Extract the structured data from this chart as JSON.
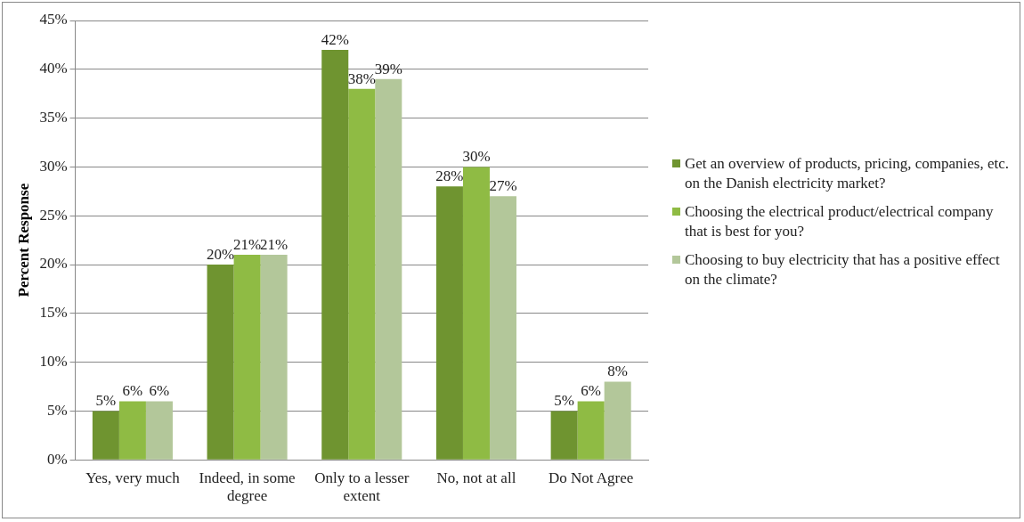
{
  "chart_data": {
    "type": "bar",
    "ylabel": "Percent Response",
    "categories": [
      "Yes, very much",
      "Indeed, in some degree",
      "Only to a lesser extent",
      "No, not at all",
      "Do Not Agree"
    ],
    "series": [
      {
        "name": "Get an overview of products, pricing, companies, etc. on the Danish electricity market?",
        "color": "#6f9430",
        "values": [
          5,
          20,
          42,
          28,
          5
        ],
        "value_labels": [
          "5%",
          "20%",
          "42%",
          "28%",
          "5%"
        ]
      },
      {
        "name": "Choosing the electrical product/electrical company that is best for you?",
        "color": "#8fbb44",
        "values": [
          6,
          21,
          38,
          30,
          6
        ],
        "value_labels": [
          "6%",
          "21%",
          "38%",
          "30%",
          "6%"
        ]
      },
      {
        "name": "Choosing to buy electricity that has a positive effect on the climate?",
        "color": "#b3c79a",
        "values": [
          6,
          21,
          39,
          27,
          8
        ],
        "value_labels": [
          "6%",
          "21%",
          "39%",
          "27%",
          "8%"
        ]
      }
    ],
    "ylim": [
      0,
      45
    ],
    "yticks": [
      {
        "value": 0,
        "label": "0%"
      },
      {
        "value": 5,
        "label": "5%"
      },
      {
        "value": 10,
        "label": "10%"
      },
      {
        "value": 15,
        "label": "15%"
      },
      {
        "value": 20,
        "label": "20%"
      },
      {
        "value": 25,
        "label": "25%"
      },
      {
        "value": 30,
        "label": "30%"
      },
      {
        "value": 35,
        "label": "35%"
      },
      {
        "value": 40,
        "label": "40%"
      },
      {
        "value": 45,
        "label": "45%"
      }
    ],
    "grid": "y",
    "legend": "right"
  }
}
